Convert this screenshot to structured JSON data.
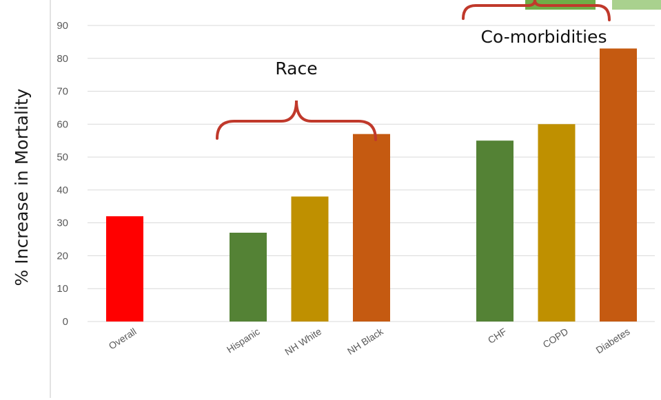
{
  "chart_data": {
    "type": "bar",
    "ylabel": "% Increase in Mortality",
    "xlabel": "",
    "title": "",
    "ylim": [
      0,
      90
    ],
    "yticks": [
      0,
      10,
      20,
      30,
      40,
      50,
      60,
      70,
      80,
      90
    ],
    "grid": true,
    "categories": [
      "Overall",
      "Hispanic",
      "NH White",
      "NH Black",
      "CHF",
      "COPD",
      "Diabetes"
    ],
    "values": [
      32,
      27,
      38,
      57,
      55,
      60,
      83
    ],
    "bar_colors": [
      "#ff0000",
      "#548235",
      "#bf9000",
      "#c55a11",
      "#548235",
      "#bf9000",
      "#c55a11"
    ],
    "annotations": {
      "race": "Race",
      "comorbidities": "Co-morbidities"
    }
  }
}
